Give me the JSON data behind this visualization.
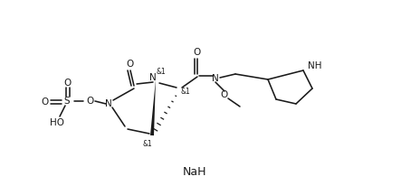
{
  "background_color": "#ffffff",
  "line_color": "#1a1a1a",
  "text_color": "#1a1a1a",
  "naH_label": "NaH",
  "stereolabels": [
    "&1",
    "&1",
    "&1"
  ],
  "atom_labels": {
    "O_carbonyl_top": "O",
    "O_carbonyl_left": "O",
    "N_top": "N",
    "N_bottom": "N",
    "O_sulfate1": "O",
    "O_sulfate2": "O",
    "S": "S",
    "O_link": "O",
    "HO": "HO",
    "N_amide": "N",
    "O_methoxy": "O",
    "NH_pyrrole": "NH"
  },
  "figsize": [
    4.43,
    2.16
  ],
  "dpi": 100
}
